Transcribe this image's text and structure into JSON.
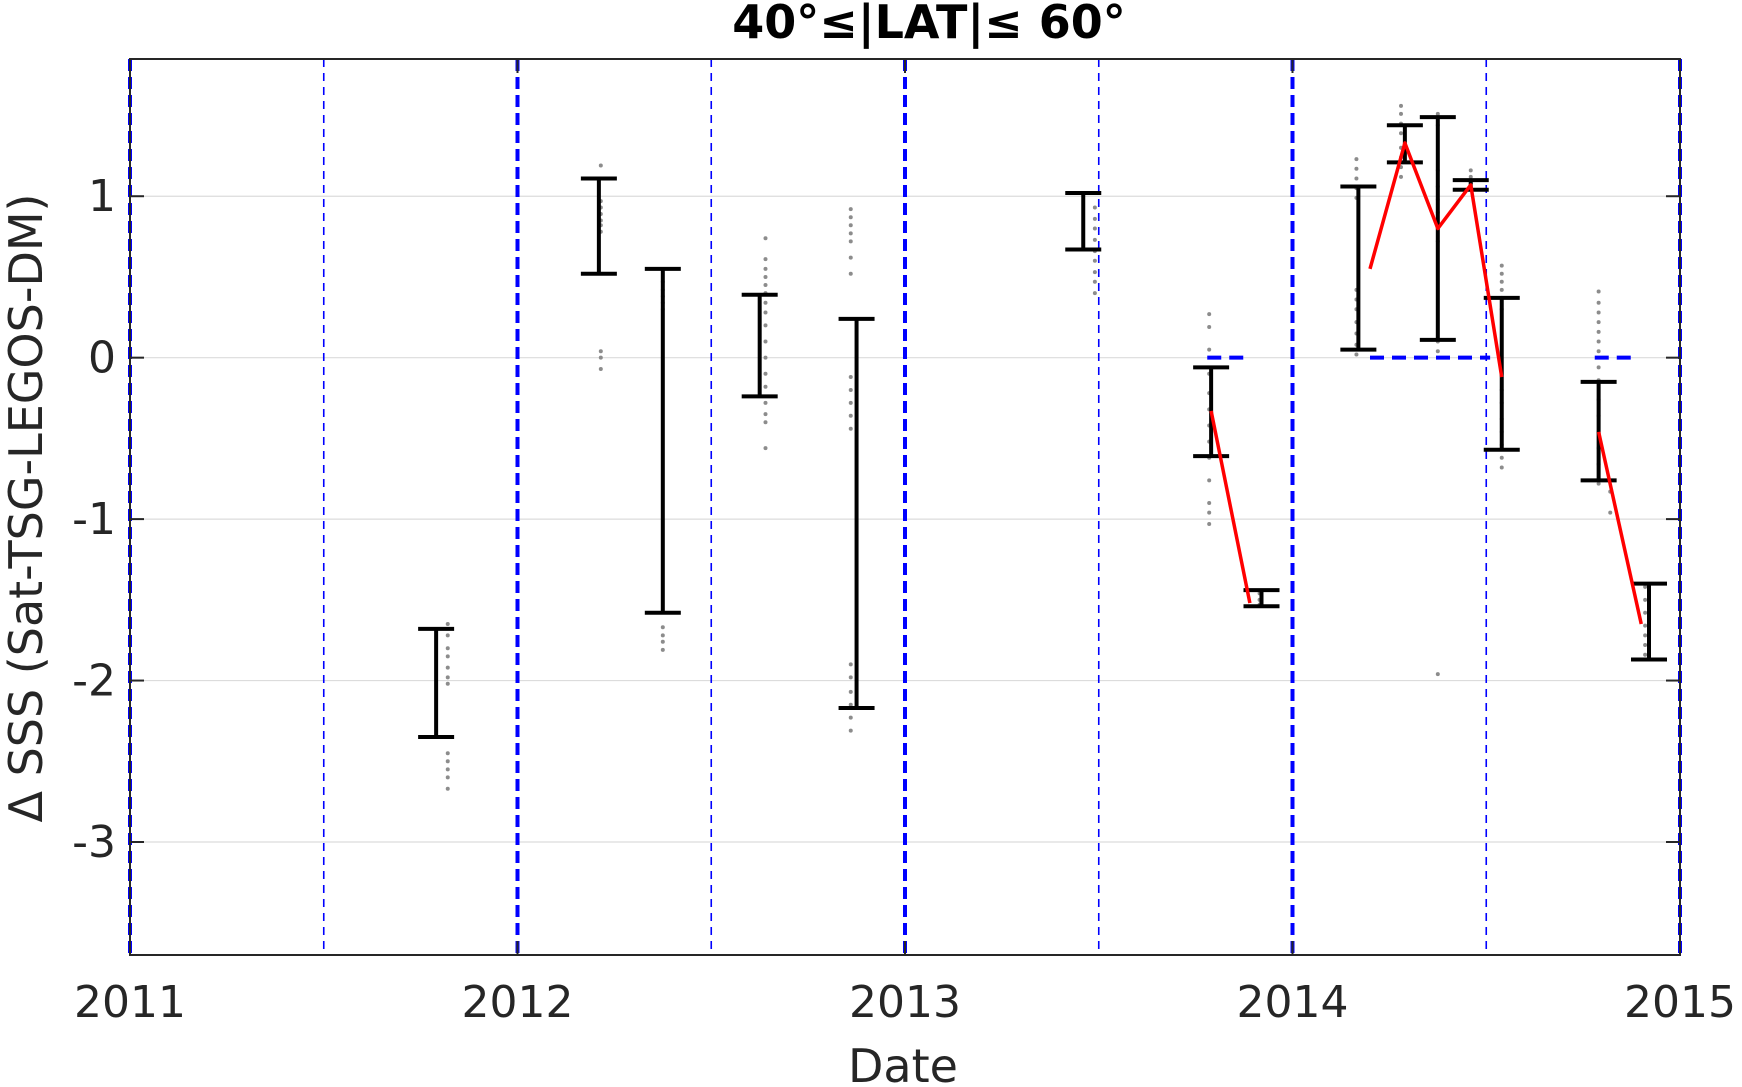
{
  "chart_data": {
    "type": "scatter",
    "title": "40°≤|LAT|≤ 60°",
    "xlabel": "Date",
    "ylabel": "Δ SSS (Sat-TSG-LEGOS-DM)",
    "xlim": [
      2011,
      2015
    ],
    "ylim": [
      -3.7,
      1.85
    ],
    "x_ticks": [
      2011,
      2012,
      2013,
      2014,
      2015
    ],
    "x_tick_labels": [
      "2011",
      "2012",
      "2013",
      "2014",
      "2015"
    ],
    "y_ticks": [
      -3,
      -2,
      -1,
      0,
      1
    ],
    "y_tick_labels": [
      "-3",
      "-2",
      "-1",
      "0",
      "1"
    ],
    "grid": "horizontal",
    "colors": {
      "errorbar": "#000000",
      "trend": "#ff0000",
      "points": "#8c8c8c",
      "vlines": "#0000ff",
      "zero_segments": "#0000ff",
      "grid": "#dcdcdc",
      "axes": "#262626"
    },
    "vertical_lines": [
      {
        "x": 2011.0,
        "style": "thick"
      },
      {
        "x": 2011.5,
        "style": "thin"
      },
      {
        "x": 2012.0,
        "style": "thick"
      },
      {
        "x": 2012.5,
        "style": "thin"
      },
      {
        "x": 2013.0,
        "style": "thick"
      },
      {
        "x": 2013.5,
        "style": "thin"
      },
      {
        "x": 2014.0,
        "style": "thick"
      },
      {
        "x": 2014.5,
        "style": "thin"
      },
      {
        "x": 2015.0,
        "style": "thick"
      }
    ],
    "error_bars": [
      {
        "x": 2011.79,
        "low": -2.35,
        "high": -1.68
      },
      {
        "x": 2012.21,
        "low": 0.52,
        "high": 1.11
      },
      {
        "x": 2012.375,
        "low": -1.58,
        "high": 0.55
      },
      {
        "x": 2012.625,
        "low": -0.24,
        "high": 0.39
      },
      {
        "x": 2012.875,
        "low": -2.17,
        "high": 0.24
      },
      {
        "x": 2013.46,
        "low": 0.67,
        "high": 1.02
      },
      {
        "x": 2013.79,
        "low": -0.61,
        "high": -0.06
      },
      {
        "x": 2013.92,
        "low": -1.54,
        "high": -1.44
      },
      {
        "x": 2014.17,
        "low": 0.05,
        "high": 1.06
      },
      {
        "x": 2014.29,
        "low": 1.21,
        "high": 1.44
      },
      {
        "x": 2014.375,
        "low": 0.11,
        "high": 1.49
      },
      {
        "x": 2014.46,
        "low": 1.04,
        "high": 1.1
      },
      {
        "x": 2014.54,
        "low": -0.57,
        "high": 0.37
      },
      {
        "x": 2014.79,
        "low": -0.76,
        "high": -0.15
      },
      {
        "x": 2014.92,
        "low": -1.87,
        "high": -1.4
      }
    ],
    "trend_lines": [
      {
        "x": [
          2013.79,
          2013.89
        ],
        "y": [
          -0.33,
          -1.52
        ]
      },
      {
        "x": [
          2014.2,
          2014.29,
          2014.375,
          2014.46,
          2014.54
        ],
        "y": [
          0.55,
          1.33,
          0.8,
          1.07,
          -0.12
        ]
      },
      {
        "x": [
          2014.79,
          2014.9
        ],
        "y": [
          -0.46,
          -1.65
        ]
      }
    ],
    "zero_segments": [
      {
        "x": [
          2013.78,
          2013.88
        ],
        "y": 0
      },
      {
        "x": [
          2014.2,
          2014.51
        ],
        "y": 0
      },
      {
        "x": [
          2014.78,
          2014.88
        ],
        "y": 0
      }
    ],
    "scatter_groups": [
      {
        "x": 2011.82,
        "y": [
          -1.65,
          -1.72,
          -1.8,
          -1.85,
          -1.92,
          -1.98,
          -2.02,
          -2.45,
          -2.5,
          -2.55,
          -2.6,
          -2.67
        ]
      },
      {
        "x": 2012.215,
        "y": [
          1.19,
          0.97,
          0.93,
          0.89,
          0.85,
          0.82,
          0.78,
          0.04,
          0.0,
          -0.07
        ]
      },
      {
        "x": 2012.375,
        "y": [
          0.47,
          0.42,
          0.38,
          0.34,
          0.3,
          -1.67,
          -1.72,
          -1.76,
          -1.81
        ]
      },
      {
        "x": 2012.64,
        "y": [
          0.74,
          0.61,
          0.55,
          0.5,
          0.45,
          0.4,
          0.34,
          0.28,
          0.2,
          0.1,
          0.0,
          -0.1,
          -0.18,
          -0.28,
          -0.35,
          -0.4,
          -0.56
        ]
      },
      {
        "x": 2012.86,
        "y": [
          0.92,
          0.87,
          0.82,
          0.77,
          0.72,
          0.62,
          0.52,
          -0.12,
          -0.2,
          -0.28,
          -0.36,
          -0.44,
          -1.9,
          -1.98,
          -2.07,
          -2.15,
          -2.23,
          -2.31
        ]
      },
      {
        "x": 2013.49,
        "y": [
          0.93,
          0.86,
          0.8,
          0.73,
          0.66,
          0.6,
          0.53,
          0.47,
          0.4
        ]
      },
      {
        "x": 2013.785,
        "y": [
          0.27,
          0.19,
          0.05,
          -0.1,
          -0.22,
          -0.32,
          -0.42,
          -0.52,
          -0.62,
          -0.76,
          -0.9,
          -0.96,
          -1.03
        ]
      },
      {
        "x": 2013.915,
        "y": [
          -1.46,
          -1.5,
          -1.53
        ]
      },
      {
        "x": 2014.165,
        "y": [
          1.23,
          1.17,
          1.11,
          1.05,
          0.99,
          0.42,
          0.36,
          0.3,
          0.22,
          0.15,
          0.08,
          0.02
        ]
      },
      {
        "x": 2014.28,
        "y": [
          1.56,
          1.51,
          1.45,
          1.39,
          1.3,
          1.24,
          1.18,
          1.12
        ]
      },
      {
        "x": 2014.375,
        "y": [
          1.51,
          1.44,
          1.16,
          1.06,
          0.98,
          0.9,
          0.82,
          0.72,
          0.1,
          0.04,
          -1.96
        ]
      },
      {
        "x": 2014.46,
        "y": [
          1.16,
          1.12,
          1.08,
          1.04
        ]
      },
      {
        "x": 2014.54,
        "y": [
          0.57,
          0.52,
          0.47,
          0.42,
          0.37,
          0.3,
          -0.2,
          -0.28,
          -0.38,
          -0.46,
          -0.54,
          -0.62,
          -0.68
        ]
      },
      {
        "x": 2014.79,
        "y": [
          0.41,
          0.34,
          0.28,
          0.22,
          0.16,
          0.1,
          0.04,
          -0.06,
          -0.14,
          -0.26,
          -0.36,
          -0.46,
          -0.56,
          -0.66,
          -0.78
        ]
      },
      {
        "x": 2014.82,
        "y": [
          -0.83,
          -0.96
        ]
      },
      {
        "x": 2014.91,
        "y": [
          -1.42,
          -1.5,
          -1.58,
          -1.66,
          -1.72,
          -1.78,
          -1.84
        ]
      }
    ]
  }
}
